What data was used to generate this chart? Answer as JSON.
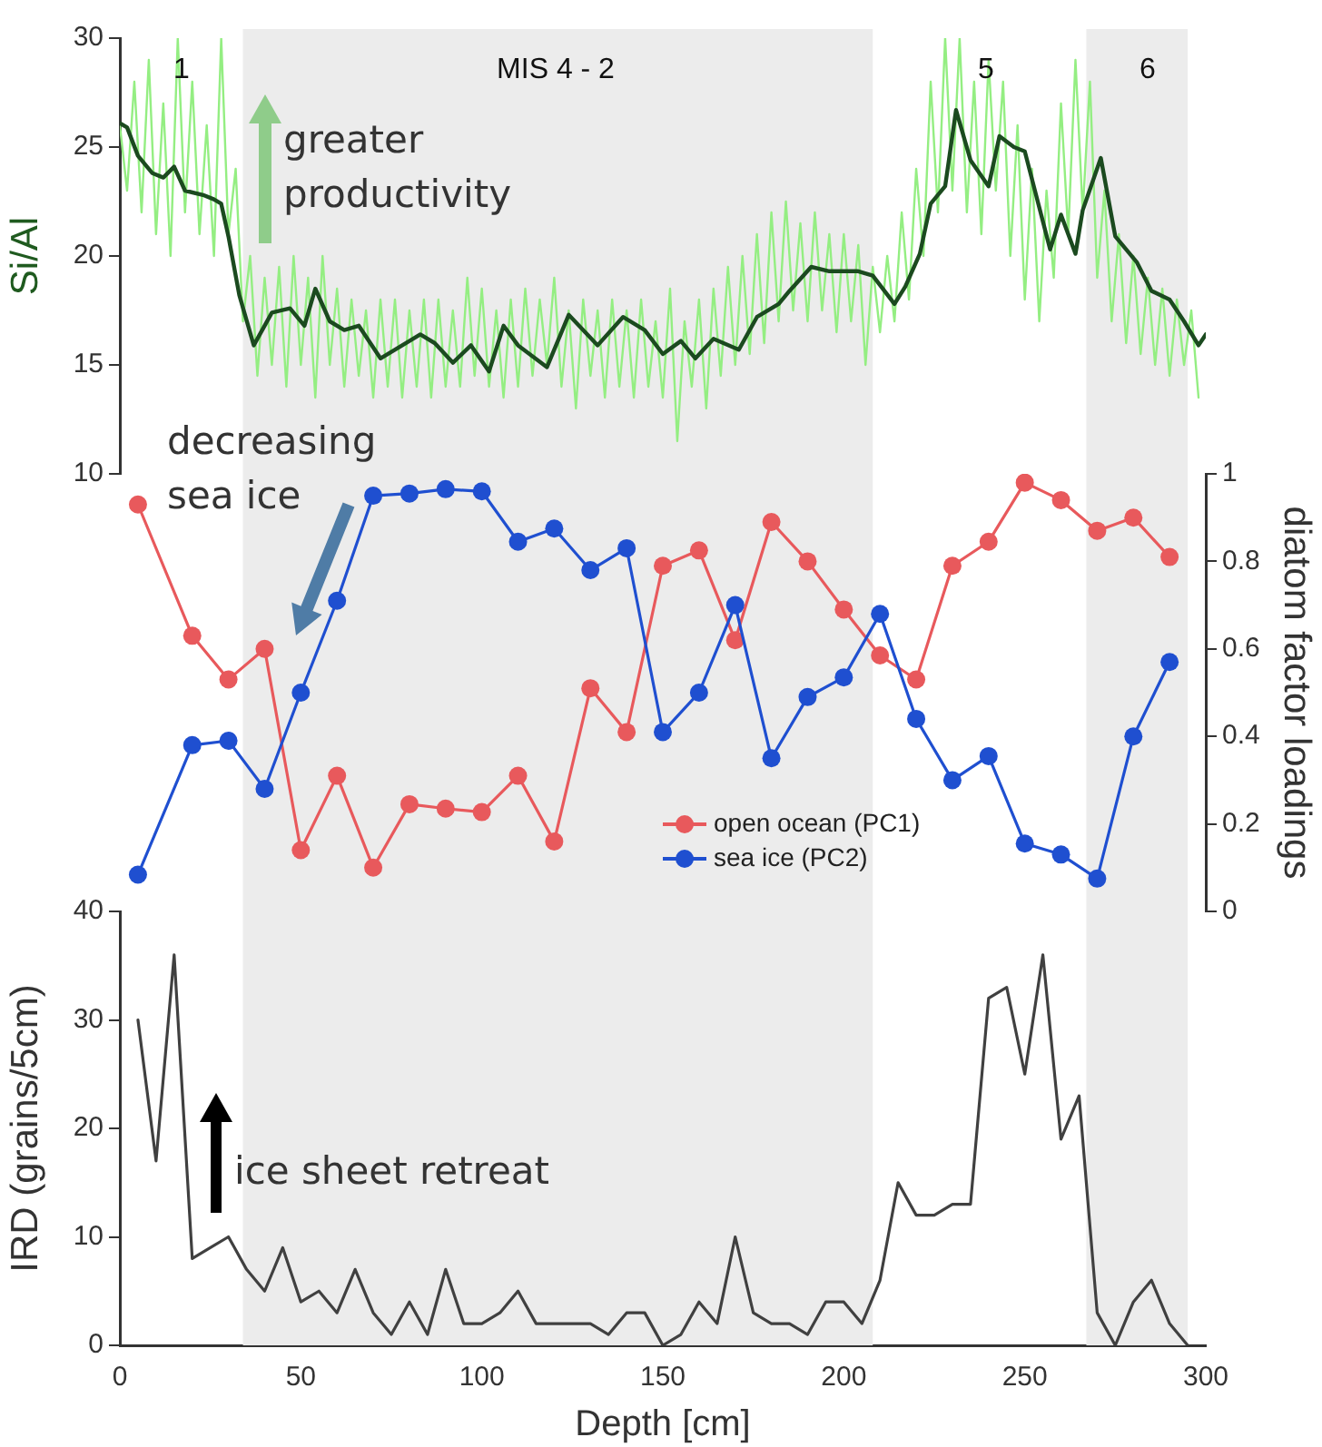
{
  "chart_data": [
    {
      "type": "line",
      "ylabel": "Si/Al",
      "xlim": [
        0,
        300
      ],
      "ylim": [
        10,
        30
      ],
      "yticks": [
        10,
        15,
        20,
        25,
        30
      ],
      "tick_labels": "y",
      "marker": "none",
      "bands": [
        {
          "axis": "x",
          "from": 34,
          "to": 208,
          "color": "#ececec"
        },
        {
          "axis": "x",
          "from": 267,
          "to": 295,
          "color": "#ececec"
        }
      ],
      "annotations": [
        "1",
        "MIS 4 - 2",
        "5",
        "6",
        "greater productivity"
      ],
      "series": [
        {
          "color": "#94ee82",
          "x": [
            0,
            2,
            4,
            6,
            8,
            10,
            12,
            14,
            16,
            18,
            20,
            22,
            24,
            26,
            28,
            30,
            32,
            34,
            36,
            38,
            40,
            42,
            44,
            46,
            48,
            50,
            52,
            54,
            56,
            58,
            60,
            62,
            64,
            66,
            68,
            70,
            72,
            74,
            76,
            78,
            80,
            82,
            84,
            86,
            88,
            90,
            92,
            94,
            96,
            98,
            100,
            102,
            104,
            106,
            108,
            110,
            112,
            114,
            116,
            118,
            120,
            122,
            124,
            126,
            128,
            130,
            132,
            134,
            136,
            138,
            140,
            142,
            144,
            146,
            148,
            150,
            152,
            154,
            156,
            158,
            160,
            162,
            164,
            166,
            168,
            170,
            172,
            174,
            176,
            178,
            180,
            182,
            184,
            186,
            188,
            190,
            192,
            194,
            196,
            198,
            200,
            202,
            204,
            206,
            208,
            210,
            212,
            214,
            216,
            218,
            220,
            222,
            224,
            226,
            228,
            230,
            232,
            234,
            236,
            238,
            240,
            242,
            244,
            246,
            248,
            250,
            252,
            254,
            256,
            258,
            260,
            262,
            264,
            266,
            268,
            270,
            272,
            274,
            276,
            278,
            280,
            282,
            284,
            286,
            288,
            290,
            292,
            294,
            296,
            298
          ],
          "values": [
            26,
            23,
            28,
            22,
            29,
            21,
            27,
            20,
            30,
            22,
            28,
            21,
            26,
            20,
            30,
            21,
            24,
            17,
            20,
            14.5,
            19,
            15,
            19.5,
            14,
            20,
            15,
            19,
            13.5,
            20,
            15,
            18.5,
            14,
            18,
            14.5,
            17.5,
            13.5,
            18,
            14,
            18,
            13.5,
            17.5,
            14,
            18,
            13.5,
            18,
            14,
            17.5,
            14,
            19,
            14.5,
            18.5,
            14,
            17.5,
            13.5,
            18,
            14,
            18.5,
            14.5,
            18,
            15,
            19,
            14,
            17.5,
            13,
            18,
            14.5,
            17.5,
            13.5,
            18,
            14,
            17.5,
            13.5,
            18,
            14,
            17,
            13.5,
            18.5,
            11.5,
            17,
            14,
            18,
            13,
            18.5,
            14.5,
            19.5,
            15,
            20,
            15.5,
            21,
            16,
            22,
            17,
            22.5,
            17.5,
            21.5,
            17,
            22,
            17.5,
            21,
            16.5,
            21,
            17,
            20.5,
            15,
            19.5,
            16.5,
            20,
            17,
            22,
            18,
            24,
            20,
            28,
            22,
            30,
            23,
            30,
            22,
            28,
            21,
            29,
            23,
            28,
            20,
            26,
            18,
            24,
            17,
            23,
            19,
            27,
            21,
            29,
            22,
            28,
            19,
            23,
            17,
            21,
            16,
            20,
            15.5,
            19,
            15,
            18.5,
            14.5,
            18,
            15,
            17.5,
            13.5
          ]
        },
        {
          "color": "#1b4a1f",
          "x": [
            0,
            2,
            5,
            9,
            12,
            15,
            18,
            23,
            26,
            28,
            30,
            33,
            37,
            42,
            47,
            51,
            54,
            58,
            62,
            66,
            72,
            83,
            87,
            92,
            97,
            102,
            106,
            110,
            118,
            124,
            132,
            139,
            145,
            150,
            155,
            159,
            164,
            171,
            176,
            182,
            185,
            191,
            196,
            204,
            208,
            214,
            217,
            221,
            224,
            228,
            231,
            235,
            240,
            243,
            247,
            250,
            257,
            260,
            264,
            266,
            271,
            275,
            281,
            285,
            290,
            294,
            298,
            300
          ],
          "values": [
            26.1,
            25.9,
            24.6,
            23.8,
            23.6,
            24.1,
            23.0,
            22.8,
            22.6,
            22.4,
            20.9,
            18.2,
            15.9,
            17.4,
            17.6,
            16.8,
            18.5,
            17.0,
            16.6,
            16.8,
            15.3,
            16.4,
            16.0,
            15.1,
            15.9,
            14.7,
            16.8,
            15.9,
            14.9,
            17.3,
            15.9,
            17.2,
            16.6,
            15.5,
            16.1,
            15.3,
            16.2,
            15.7,
            17.2,
            17.8,
            18.4,
            19.5,
            19.3,
            19.3,
            19.1,
            17.8,
            18.6,
            20.1,
            22.4,
            23.2,
            26.7,
            24.4,
            23.2,
            25.5,
            25.0,
            24.8,
            20.3,
            21.9,
            20.1,
            22.1,
            24.5,
            20.9,
            19.7,
            18.4,
            18.0,
            17.0,
            15.9,
            16.4
          ]
        }
      ]
    },
    {
      "type": "line",
      "y2label": "diatom factor loadings",
      "xlim": [
        0,
        300
      ],
      "y2lim": [
        0,
        1
      ],
      "y2ticks": [
        0,
        0.2,
        0.4,
        0.6,
        0.8,
        1
      ],
      "tick_labels": "y",
      "marker": "circle",
      "legend": "bottom",
      "bands": [
        {
          "axis": "x",
          "from": 34,
          "to": 208,
          "color": "#ececec"
        },
        {
          "axis": "x",
          "from": 267,
          "to": 295,
          "color": "#ececec"
        }
      ],
      "annotations": [
        "decreasing sea ice"
      ],
      "x": [
        5,
        20,
        30,
        40,
        50,
        60,
        70,
        80,
        90,
        100,
        110,
        120,
        130,
        140,
        150,
        160,
        170,
        180,
        190,
        200,
        210,
        220,
        230,
        240,
        250,
        260,
        270,
        280,
        290
      ],
      "series": [
        {
          "name": "open ocean (PC1)",
          "color": "#e8595c",
          "axis": "y2",
          "values": [
            0.93,
            0.63,
            0.53,
            0.6,
            0.14,
            0.31,
            0.1,
            0.245,
            0.235,
            0.227,
            0.31,
            0.16,
            0.51,
            0.41,
            0.79,
            0.825,
            0.62,
            0.89,
            0.8,
            0.69,
            0.585,
            0.53,
            0.79,
            0.845,
            0.98,
            0.94,
            0.87,
            0.9,
            0.81
          ]
        },
        {
          "name": "sea ice (PC2)",
          "color": "#1f4fd0",
          "axis": "y2",
          "values": [
            0.084,
            0.38,
            0.39,
            0.28,
            0.5,
            0.71,
            0.95,
            0.955,
            0.965,
            0.96,
            0.845,
            0.875,
            0.78,
            0.83,
            0.41,
            0.5,
            0.7,
            0.35,
            0.49,
            0.535,
            0.68,
            0.44,
            0.3,
            0.355,
            0.155,
            0.13,
            0.075,
            0.4,
            0.57
          ]
        }
      ]
    },
    {
      "type": "line",
      "xlabel": "Depth [cm]",
      "ylabel": "IRD (grains/5cm)",
      "xlim": [
        0,
        300
      ],
      "xticks": [
        0,
        50,
        100,
        150,
        200,
        250,
        300
      ],
      "ylim": [
        0,
        40
      ],
      "yticks": [
        0,
        10,
        20,
        30,
        40
      ],
      "marker": "none",
      "bands": [
        {
          "axis": "x",
          "from": 34,
          "to": 208,
          "color": "#ececec"
        },
        {
          "axis": "x",
          "from": 267,
          "to": 295,
          "color": "#ececec"
        }
      ],
      "annotations": [
        "ice sheet retreat"
      ],
      "x": [
        5,
        10,
        15,
        20,
        25,
        30,
        35,
        40,
        45,
        50,
        55,
        60,
        65,
        70,
        75,
        80,
        85,
        90,
        95,
        100,
        105,
        110,
        115,
        120,
        125,
        130,
        135,
        140,
        145,
        150,
        155,
        160,
        165,
        170,
        175,
        180,
        185,
        190,
        195,
        200,
        205,
        210,
        215,
        220,
        225,
        230,
        235,
        240,
        245,
        250,
        255,
        260,
        265,
        270,
        275,
        280,
        285,
        290,
        295
      ],
      "series": [
        {
          "color": "#404040",
          "values": [
            30,
            17,
            36,
            8,
            9,
            10,
            7,
            5,
            9,
            4,
            5,
            3,
            7,
            3,
            1,
            4,
            1,
            7,
            2,
            2,
            3,
            5,
            2,
            2,
            2,
            2,
            1,
            3,
            3,
            0,
            1,
            4,
            2,
            10,
            3,
            2,
            2,
            1,
            4,
            4,
            2,
            6,
            15,
            12,
            12,
            13,
            13,
            32,
            33,
            25,
            36,
            19,
            23,
            3,
            0,
            4,
            6,
            2,
            0
          ]
        }
      ]
    }
  ]
}
